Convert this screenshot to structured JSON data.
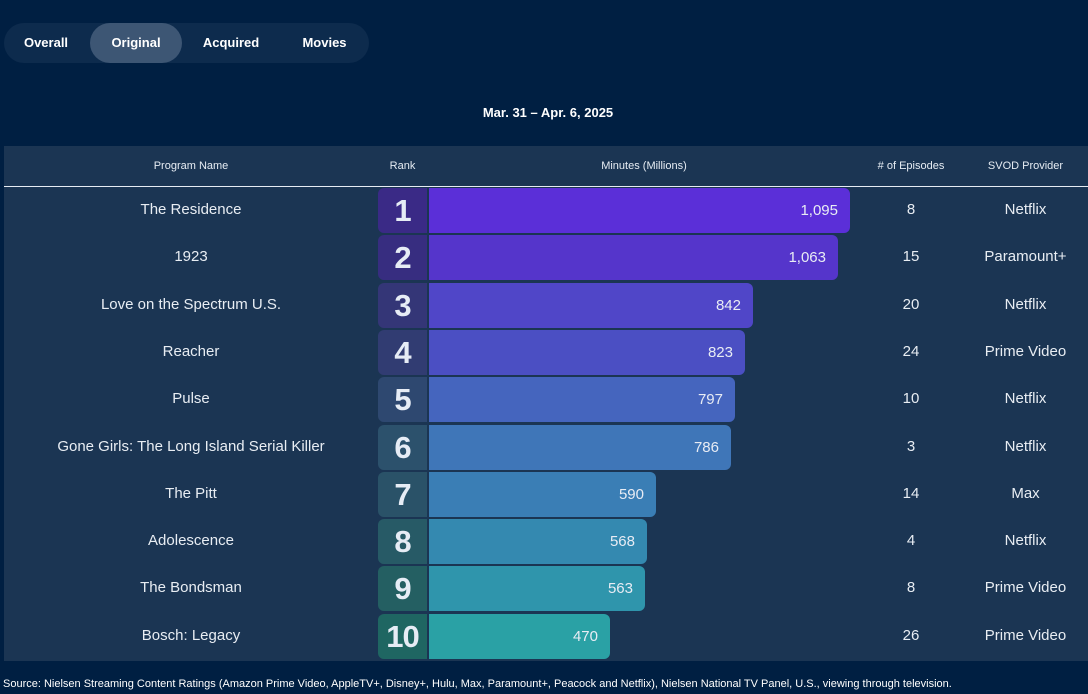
{
  "tabs": [
    {
      "label": "Overall",
      "active": false
    },
    {
      "label": "Original",
      "active": true
    },
    {
      "label": "Acquired",
      "active": false
    },
    {
      "label": "Movies",
      "active": false
    }
  ],
  "date_range": "Mar. 31 – Apr. 6, 2025",
  "headers": {
    "program": "Program Name",
    "rank": "Rank",
    "minutes": "Minutes (Millions)",
    "episodes": "# of Episodes",
    "provider": "SVOD Provider"
  },
  "chart_data": {
    "type": "bar",
    "title": "Minutes (Millions)",
    "categories": [
      "The Residence",
      "1923",
      "Love on the Spectrum U.S.",
      "Reacher",
      "Pulse",
      "Gone Girls: The Long Island Serial Killer",
      "The Pitt",
      "Adolescence",
      "The Bondsman",
      "Bosch: Legacy"
    ],
    "values": [
      1095,
      1063,
      842,
      823,
      797,
      786,
      590,
      568,
      563,
      470
    ],
    "value_labels": [
      "1,095",
      "1,063",
      "842",
      "823",
      "797",
      "786",
      "590",
      "568",
      "563",
      "470"
    ],
    "ylim": [
      0,
      1095
    ],
    "orientation": "horizontal",
    "grid": false
  },
  "rows": [
    {
      "program": "The Residence",
      "rank": "1",
      "minutes": "1,095",
      "episodes": "8",
      "provider": "Netflix"
    },
    {
      "program": "1923",
      "rank": "2",
      "minutes": "1,063",
      "episodes": "15",
      "provider": "Paramount+"
    },
    {
      "program": "Love on the Spectrum U.S.",
      "rank": "3",
      "minutes": "842",
      "episodes": "20",
      "provider": "Netflix"
    },
    {
      "program": "Reacher",
      "rank": "4",
      "minutes": "823",
      "episodes": "24",
      "provider": "Prime Video"
    },
    {
      "program": "Pulse",
      "rank": "5",
      "minutes": "797",
      "episodes": "10",
      "provider": "Netflix"
    },
    {
      "program": "Gone Girls: The Long Island Serial Killer",
      "rank": "6",
      "minutes": "786",
      "episodes": "3",
      "provider": "Netflix"
    },
    {
      "program": "The Pitt",
      "rank": "7",
      "minutes": "590",
      "episodes": "14",
      "provider": "Max"
    },
    {
      "program": "Adolescence",
      "rank": "8",
      "minutes": "568",
      "episodes": "4",
      "provider": "Netflix"
    },
    {
      "program": "The Bondsman",
      "rank": "9",
      "minutes": "563",
      "episodes": "8",
      "provider": "Prime Video"
    },
    {
      "program": "Bosch: Legacy",
      "rank": "10",
      "minutes": "470",
      "episodes": "26",
      "provider": "Prime Video"
    }
  ],
  "colors": {
    "bars": [
      "#5b2fd8",
      "#5535cb",
      "#5046c8",
      "#4b4fc3",
      "#4565be",
      "#3f76b8",
      "#3a7eb5",
      "#3489b0",
      "#2f95ac",
      "#2aa1a5"
    ],
    "rank_boxes": [
      "#3a2a86",
      "#372d80",
      "#343677",
      "#313c72",
      "#2e4870",
      "#2c516c",
      "#2a5268",
      "#275a66",
      "#245f62",
      "#1f6662"
    ]
  },
  "source": "Source: Nielsen Streaming Content Ratings (Amazon Prime Video, AppleTV+, Disney+, Hulu, Max, Paramount+, Peacock and Netflix), Nielsen National TV Panel, U.S., viewing through television."
}
